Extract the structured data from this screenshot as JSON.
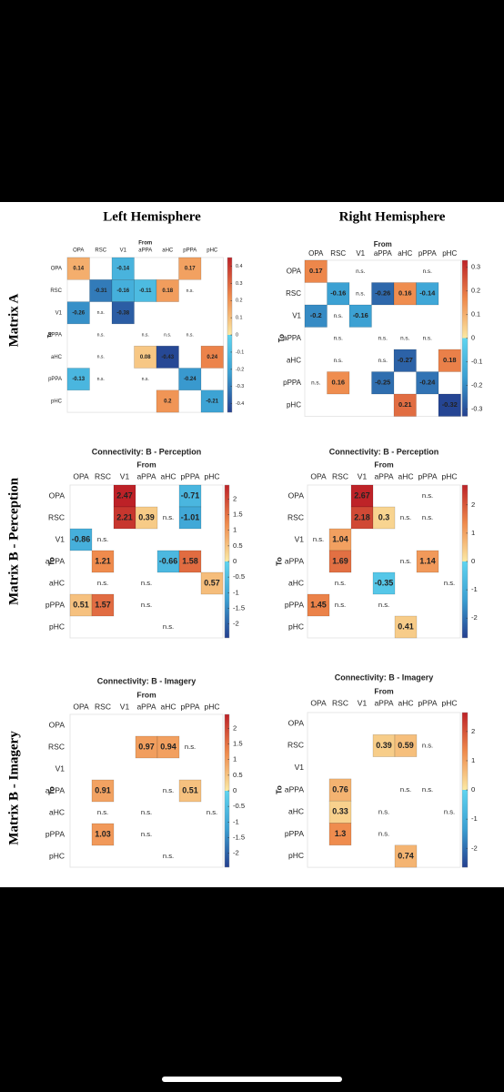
{
  "figure": {
    "column_titles": [
      "Left Hemisphere",
      "Right Hemisphere"
    ],
    "row_titles": [
      "Matrix A",
      "Matrix B - Perception",
      "Matrix B - Imagery"
    ]
  },
  "chart_data": [
    {
      "type": "heatmap",
      "x_label": "From",
      "y_label": "To",
      "x_categories": [
        "OPA",
        "RSC",
        "V1",
        "aPPA",
        "aHC",
        "pPPA",
        "pHC"
      ],
      "y_categories": [
        "OPA",
        "RSC",
        "V1",
        "aPPA",
        "aHC",
        "pPPA",
        "pHC"
      ],
      "values": [
        [
          0.14,
          null,
          -0.14,
          null,
          null,
          0.17,
          null
        ],
        [
          null,
          -0.31,
          -0.16,
          -0.11,
          0.18,
          null,
          null
        ],
        [
          -0.26,
          null,
          -0.38,
          null,
          null,
          null,
          null
        ],
        [
          null,
          null,
          null,
          null,
          null,
          null,
          null
        ],
        [
          null,
          null,
          null,
          0.08,
          -0.43,
          null,
          0.24
        ],
        [
          -0.13,
          null,
          null,
          null,
          null,
          -0.24,
          null
        ],
        [
          null,
          null,
          null,
          null,
          0.2,
          null,
          -0.21
        ]
      ],
      "value_labels": [
        [
          null,
          null,
          null,
          null,
          null,
          null,
          null
        ],
        [
          null,
          null,
          null,
          null,
          null,
          "n.s.",
          null
        ],
        [
          null,
          "n.s.",
          null,
          null,
          null,
          null,
          null
        ],
        [
          null,
          "n.s.",
          null,
          "n.s.",
          "n.s.",
          "n.s.",
          null
        ],
        [
          null,
          "n.s.",
          null,
          null,
          null,
          null,
          null
        ],
        [
          null,
          "n.s.",
          null,
          "n.s.",
          null,
          null,
          null
        ],
        [
          null,
          null,
          null,
          null,
          null,
          null,
          null
        ]
      ],
      "zlim": [
        -0.45,
        0.45
      ],
      "zticks": [
        0.4,
        0.3,
        0.2,
        0.1,
        0,
        -0.1,
        -0.2,
        -0.3,
        -0.4
      ],
      "colormap": [
        "#243f8f",
        "#3b9fd2",
        "#5fd5f0",
        "#fbe9a3",
        "#ef8a4c",
        "#bd2127"
      ]
    },
    {
      "type": "heatmap",
      "x_label": "From",
      "y_label": "To",
      "x_categories": [
        "OPA",
        "RSC",
        "V1",
        "aPPA",
        "aHC",
        "pPPA",
        "pHC"
      ],
      "y_categories": [
        "OPA",
        "RSC",
        "V1",
        "aPPA",
        "aHC",
        "pPPA",
        "pHC"
      ],
      "values": [
        [
          0.17,
          null,
          null,
          null,
          null,
          null,
          null
        ],
        [
          null,
          -0.16,
          null,
          -0.26,
          0.16,
          -0.14,
          null
        ],
        [
          -0.2,
          null,
          -0.16,
          null,
          null,
          null,
          null
        ],
        [
          null,
          null,
          null,
          null,
          null,
          null,
          null
        ],
        [
          null,
          null,
          null,
          null,
          -0.27,
          null,
          0.18
        ],
        [
          null,
          0.16,
          null,
          -0.25,
          null,
          -0.24,
          null
        ],
        [
          null,
          null,
          null,
          null,
          0.21,
          null,
          -0.32
        ]
      ],
      "value_labels": [
        [
          null,
          null,
          "n.s.",
          null,
          null,
          "n.s.",
          null
        ],
        [
          null,
          null,
          "n.s.",
          null,
          null,
          null,
          null
        ],
        [
          null,
          "n.s.",
          null,
          null,
          null,
          null,
          null
        ],
        [
          null,
          "n.s.",
          null,
          "n.s.",
          "n.s.",
          "n.s.",
          null
        ],
        [
          null,
          "n.s.",
          null,
          "n.s.",
          null,
          null,
          null
        ],
        [
          "n.s.",
          null,
          null,
          null,
          null,
          null,
          null
        ],
        [
          null,
          null,
          null,
          null,
          null,
          null,
          null
        ]
      ],
      "zlim": [
        -0.33,
        0.33
      ],
      "zticks": [
        0.3,
        0.2,
        0.1,
        0,
        -0.1,
        -0.2,
        -0.3
      ],
      "colormap": [
        "#243f8f",
        "#3b9fd2",
        "#5fd5f0",
        "#fbe9a3",
        "#ef8a4c",
        "#bd2127"
      ]
    },
    {
      "type": "heatmap",
      "title": "Connectivity: B - Perception",
      "x_label": "From",
      "y_label": "To",
      "x_categories": [
        "OPA",
        "RSC",
        "V1",
        "aPPA",
        "aHC",
        "pPPA",
        "pHC"
      ],
      "y_categories": [
        "OPA",
        "RSC",
        "V1",
        "aPPA",
        "aHC",
        "pPPA",
        "pHC"
      ],
      "values": [
        [
          null,
          null,
          2.47,
          null,
          null,
          -0.71,
          null
        ],
        [
          null,
          null,
          2.21,
          0.39,
          null,
          -1.01,
          null
        ],
        [
          -0.86,
          null,
          null,
          null,
          null,
          null,
          null
        ],
        [
          null,
          1.21,
          null,
          null,
          -0.66,
          1.58,
          null
        ],
        [
          null,
          null,
          null,
          null,
          null,
          null,
          0.57
        ],
        [
          0.51,
          1.57,
          null,
          null,
          null,
          null,
          null
        ],
        [
          null,
          null,
          null,
          null,
          null,
          null,
          null
        ]
      ],
      "value_labels": [
        [
          null,
          null,
          null,
          null,
          null,
          null,
          null
        ],
        [
          null,
          null,
          null,
          null,
          "n.s.",
          null,
          null
        ],
        [
          null,
          "n.s.",
          null,
          null,
          null,
          null,
          null
        ],
        [
          null,
          null,
          null,
          null,
          null,
          null,
          null
        ],
        [
          null,
          "n.s.",
          null,
          "n.s.",
          null,
          null,
          null
        ],
        [
          null,
          null,
          null,
          "n.s.",
          null,
          null,
          null
        ],
        [
          null,
          null,
          null,
          null,
          "n.s.",
          null,
          null
        ]
      ],
      "zlim": [
        -2.45,
        2.45
      ],
      "zticks": [
        2,
        1.5,
        1,
        0.5,
        0,
        -0.5,
        -1,
        -1.5,
        -2
      ],
      "colormap": [
        "#243f8f",
        "#3b9fd2",
        "#5fd5f0",
        "#fbe9a3",
        "#ef8a4c",
        "#bd2127"
      ]
    },
    {
      "type": "heatmap",
      "title": "Connectivity: B - Perception",
      "x_label": "From",
      "y_label": "To",
      "x_categories": [
        "OPA",
        "RSC",
        "V1",
        "aPPA",
        "aHC",
        "pPPA",
        "pHC"
      ],
      "y_categories": [
        "OPA",
        "RSC",
        "V1",
        "aPPA",
        "aHC",
        "pPPA",
        "pHC"
      ],
      "values": [
        [
          null,
          null,
          2.67,
          null,
          null,
          null,
          null
        ],
        [
          null,
          null,
          2.18,
          0.3,
          null,
          null,
          null
        ],
        [
          null,
          1.04,
          null,
          null,
          null,
          null,
          null
        ],
        [
          null,
          1.69,
          null,
          null,
          null,
          1.14,
          null
        ],
        [
          null,
          null,
          null,
          -0.35,
          null,
          null,
          null
        ],
        [
          1.45,
          null,
          null,
          null,
          null,
          null,
          null
        ],
        [
          null,
          null,
          null,
          null,
          0.41,
          null,
          null
        ]
      ],
      "value_labels": [
        [
          null,
          null,
          null,
          null,
          null,
          "n.s.",
          null
        ],
        [
          null,
          null,
          null,
          null,
          "n.s.",
          "n.s.",
          null
        ],
        [
          "n.s.",
          null,
          null,
          null,
          null,
          null,
          null
        ],
        [
          null,
          null,
          null,
          null,
          "n.s.",
          null,
          null
        ],
        [
          null,
          "n.s.",
          null,
          null,
          null,
          null,
          "n.s."
        ],
        [
          null,
          "n.s.",
          null,
          "n.s.",
          null,
          null,
          null
        ],
        [
          null,
          null,
          null,
          null,
          null,
          null,
          null
        ]
      ],
      "zlim": [
        -2.7,
        2.7
      ],
      "zticks": [
        2,
        1,
        0,
        -1,
        -2
      ],
      "colormap": [
        "#243f8f",
        "#3b9fd2",
        "#5fd5f0",
        "#fbe9a3",
        "#ef8a4c",
        "#bd2127"
      ]
    },
    {
      "type": "heatmap",
      "title": "Connectivity: B - Imagery",
      "x_label": "From",
      "y_label": "To",
      "x_categories": [
        "OPA",
        "RSC",
        "V1",
        "aPPA",
        "aHC",
        "pPPA",
        "pHC"
      ],
      "y_categories": [
        "OPA",
        "RSC",
        "V1",
        "aPPA",
        "aHC",
        "pPPA",
        "pHC"
      ],
      "values": [
        [
          null,
          null,
          null,
          null,
          null,
          null,
          null
        ],
        [
          null,
          null,
          null,
          0.97,
          0.94,
          null,
          null
        ],
        [
          null,
          null,
          null,
          null,
          null,
          null,
          null
        ],
        [
          null,
          0.91,
          null,
          null,
          null,
          0.51,
          null
        ],
        [
          null,
          null,
          null,
          null,
          null,
          null,
          null
        ],
        [
          null,
          1.03,
          null,
          null,
          null,
          null,
          null
        ],
        [
          null,
          null,
          null,
          null,
          null,
          null,
          null
        ]
      ],
      "value_labels": [
        [
          null,
          null,
          null,
          null,
          null,
          null,
          null
        ],
        [
          null,
          null,
          null,
          null,
          null,
          "n.s.",
          null
        ],
        [
          null,
          null,
          null,
          null,
          null,
          null,
          null
        ],
        [
          null,
          null,
          null,
          null,
          "n.s.",
          null,
          null
        ],
        [
          null,
          "n.s.",
          null,
          "n.s.",
          null,
          null,
          "n.s."
        ],
        [
          null,
          null,
          null,
          "n.s.",
          null,
          null,
          null
        ],
        [
          null,
          null,
          null,
          null,
          "n.s.",
          null,
          null
        ]
      ],
      "zlim": [
        -2.45,
        2.45
      ],
      "zticks": [
        2,
        1.5,
        1,
        0.5,
        0,
        -0.5,
        -1,
        -1.5,
        -2
      ],
      "colormap": [
        "#243f8f",
        "#3b9fd2",
        "#5fd5f0",
        "#fbe9a3",
        "#ef8a4c",
        "#bd2127"
      ]
    },
    {
      "type": "heatmap",
      "title": "Connectivity: B - Imagery",
      "x_label": "From",
      "y_label": "To",
      "x_categories": [
        "OPA",
        "RSC",
        "V1",
        "aPPA",
        "aHC",
        "pPPA",
        "pHC"
      ],
      "y_categories": [
        "OPA",
        "RSC",
        "V1",
        "aPPA",
        "aHC",
        "pPPA",
        "pHC"
      ],
      "values": [
        [
          null,
          null,
          null,
          null,
          null,
          null,
          null
        ],
        [
          null,
          null,
          null,
          0.39,
          0.59,
          null,
          null
        ],
        [
          null,
          null,
          null,
          null,
          null,
          null,
          null
        ],
        [
          null,
          0.76,
          null,
          null,
          null,
          null,
          null
        ],
        [
          null,
          0.33,
          null,
          null,
          null,
          null,
          null
        ],
        [
          null,
          1.3,
          null,
          null,
          null,
          null,
          null
        ],
        [
          null,
          null,
          null,
          null,
          0.74,
          null,
          null
        ]
      ],
      "value_labels": [
        [
          null,
          null,
          null,
          null,
          null,
          null,
          null
        ],
        [
          null,
          null,
          null,
          null,
          null,
          "n.s.",
          null
        ],
        [
          null,
          null,
          null,
          null,
          null,
          null,
          null
        ],
        [
          null,
          null,
          null,
          null,
          "n.s.",
          "n.s.",
          null
        ],
        [
          null,
          null,
          null,
          "n.s.",
          null,
          null,
          "n.s."
        ],
        [
          null,
          null,
          null,
          "n.s.",
          null,
          null,
          null
        ],
        [
          null,
          null,
          null,
          null,
          null,
          null,
          null
        ]
      ],
      "zlim": [
        -2.65,
        2.65
      ],
      "zticks": [
        2,
        1,
        0,
        -1,
        -2
      ],
      "colormap": [
        "#243f8f",
        "#3b9fd2",
        "#5fd5f0",
        "#fbe9a3",
        "#ef8a4c",
        "#bd2127"
      ]
    }
  ]
}
